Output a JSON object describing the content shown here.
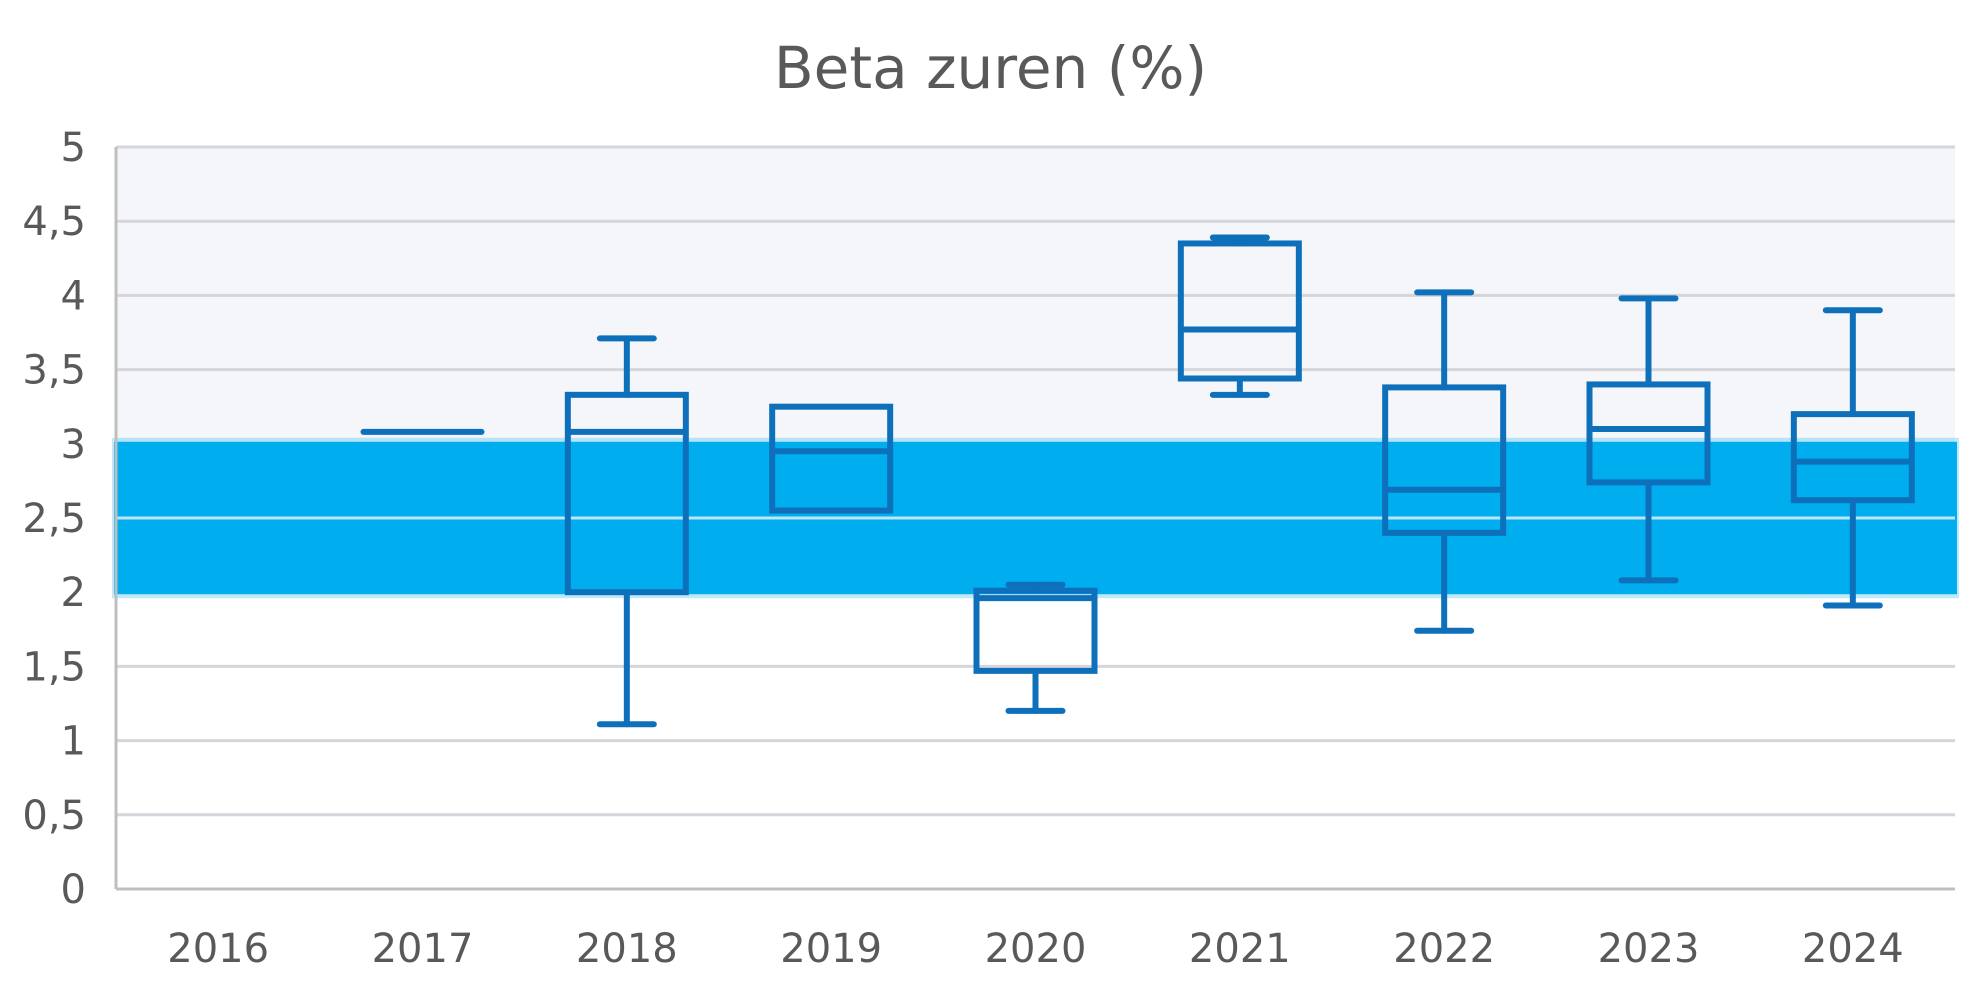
{
  "chart_data": {
    "type": "box",
    "title": "Beta zuren (%)",
    "xlabel": "",
    "ylabel": "",
    "ylim": [
      0,
      5
    ],
    "y_ticks": [
      "0",
      "0,5",
      "1",
      "1,5",
      "2",
      "2,5",
      "3",
      "3,5",
      "4",
      "4,5",
      "5"
    ],
    "y_tick_values": [
      0,
      0.5,
      1,
      1.5,
      2,
      2.5,
      3,
      3.5,
      4,
      4.5,
      5
    ],
    "categories": [
      "2016",
      "2017",
      "2018",
      "2019",
      "2020",
      "2021",
      "2022",
      "2023",
      "2024"
    ],
    "boxes": [
      null,
      {
        "min": 3.08,
        "q1": 3.08,
        "median": 3.08,
        "q3": 3.08,
        "max": 3.08
      },
      {
        "min": 1.11,
        "q1": 2.0,
        "median": 3.08,
        "q3": 3.33,
        "max": 3.71
      },
      {
        "min": 2.55,
        "q1": 2.55,
        "median": 2.95,
        "q3": 3.25,
        "max": 3.25
      },
      {
        "min": 1.2,
        "q1": 1.47,
        "median": 1.96,
        "q3": 2.01,
        "max": 2.05
      },
      {
        "min": 3.33,
        "q1": 3.44,
        "median": 3.77,
        "q3": 4.35,
        "max": 4.39
      },
      {
        "min": 1.74,
        "q1": 2.4,
        "median": 2.69,
        "q3": 3.38,
        "max": 4.02
      },
      {
        "min": 2.08,
        "q1": 2.74,
        "median": 3.1,
        "q3": 3.4,
        "max": 3.98
      },
      {
        "min": 1.91,
        "q1": 2.62,
        "median": 2.88,
        "q3": 3.2,
        "max": 3.9
      }
    ],
    "reference_band": [
      2.0,
      3.0
    ],
    "shaded_region": [
      3.0,
      5.0
    ],
    "grid": true,
    "colors": {
      "box": "#0E70BA",
      "band": "#00ADEF",
      "shade": "#F5F6FA",
      "grid": "#D5D5DB",
      "axis": "#BFBFBF",
      "text": "#595959"
    }
  }
}
